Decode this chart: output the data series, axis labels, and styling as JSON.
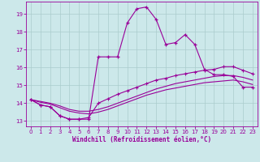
{
  "xlabel": "Windchill (Refroidissement éolien,°C)",
  "xlim": [
    -0.5,
    23.5
  ],
  "ylim": [
    12.7,
    19.7
  ],
  "xticks": [
    0,
    1,
    2,
    3,
    4,
    5,
    6,
    7,
    8,
    9,
    10,
    11,
    12,
    13,
    14,
    15,
    16,
    17,
    18,
    19,
    20,
    21,
    22,
    23
  ],
  "yticks": [
    13,
    14,
    15,
    16,
    17,
    18,
    19
  ],
  "bg_color": "#cce8ea",
  "line_color": "#990099",
  "grid_color": "#aacccc",
  "line1_x": [
    0,
    1,
    2,
    3,
    4,
    5,
    6,
    7,
    8,
    9,
    10,
    11,
    12,
    13,
    14,
    15,
    16,
    17,
    18,
    19,
    20,
    21,
    22,
    23
  ],
  "line1_y": [
    14.2,
    13.9,
    13.8,
    13.3,
    13.1,
    13.1,
    13.1,
    16.6,
    16.6,
    16.6,
    18.5,
    19.3,
    19.4,
    18.7,
    17.3,
    17.4,
    17.85,
    17.3,
    15.9,
    15.6,
    15.6,
    15.5,
    14.9,
    14.9
  ],
  "line2_x": [
    0,
    1,
    2,
    3,
    4,
    5,
    6,
    7,
    8,
    9,
    10,
    11,
    12,
    13,
    14,
    15,
    16,
    17,
    18,
    19,
    20,
    21,
    22,
    23
  ],
  "line2_y": [
    14.2,
    13.9,
    13.8,
    13.3,
    13.1,
    13.1,
    13.2,
    14.0,
    14.25,
    14.5,
    14.7,
    14.9,
    15.1,
    15.3,
    15.4,
    15.55,
    15.65,
    15.75,
    15.85,
    15.9,
    16.05,
    16.05,
    15.85,
    15.65
  ],
  "line3_x": [
    0,
    1,
    2,
    3,
    4,
    5,
    6,
    7,
    8,
    9,
    10,
    11,
    12,
    13,
    14,
    15,
    16,
    17,
    18,
    19,
    20,
    21,
    22,
    23
  ],
  "line3_y": [
    14.2,
    14.05,
    13.95,
    13.75,
    13.55,
    13.45,
    13.4,
    13.5,
    13.65,
    13.85,
    14.05,
    14.25,
    14.45,
    14.6,
    14.75,
    14.85,
    14.95,
    15.05,
    15.15,
    15.2,
    15.25,
    15.3,
    15.2,
    15.05
  ],
  "line4_x": [
    0,
    1,
    2,
    3,
    4,
    5,
    6,
    7,
    8,
    9,
    10,
    11,
    12,
    13,
    14,
    15,
    16,
    17,
    18,
    19,
    20,
    21,
    22,
    23
  ],
  "line4_y": [
    14.2,
    14.1,
    14.0,
    13.85,
    13.65,
    13.55,
    13.55,
    13.65,
    13.8,
    14.0,
    14.2,
    14.4,
    14.6,
    14.8,
    14.95,
    15.1,
    15.2,
    15.3,
    15.4,
    15.5,
    15.55,
    15.55,
    15.45,
    15.3
  ]
}
